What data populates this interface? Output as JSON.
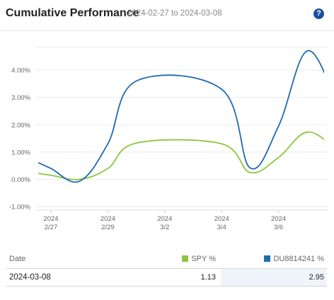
{
  "header": {
    "title": "Cumulative Performance",
    "date_range": "2024-02-27 to 2024-03-08",
    "help_label": "?"
  },
  "chart_data": {
    "type": "line",
    "title": "Cumulative Performance",
    "subtitle": "2024-02-27 to 2024-03-08",
    "ylim": [
      -1.0,
      5.0
    ],
    "y_ticks": [
      -1,
      0,
      1,
      2,
      3,
      4
    ],
    "y_tick_labels": [
      "-1.00%",
      "0.00%",
      "1.00%",
      "2.00%",
      "3.00%",
      "4.00%"
    ],
    "x_tick_labels": [
      {
        "year": "2024",
        "date": "2/27"
      },
      {
        "year": "2024",
        "date": "2/29"
      },
      {
        "year": "2024",
        "date": "3/2"
      },
      {
        "year": "2024",
        "date": "3/4"
      },
      {
        "year": "2024",
        "date": "3/6"
      }
    ],
    "x": [
      "2024-02-27",
      "2024-02-28",
      "2024-02-29",
      "2024-03-01",
      "2024-03-04",
      "2024-03-05",
      "2024-03-06",
      "2024-03-07",
      "2024-03-08"
    ],
    "series": [
      {
        "name": "SPY %",
        "color": "#8dc63f",
        "values": [
          0.15,
          0.0,
          0.4,
          1.33,
          1.3,
          0.25,
          0.8,
          1.73,
          1.13
        ]
      },
      {
        "name": "DU8814241 %",
        "color": "#1f6bb0",
        "values": [
          0.4,
          -0.07,
          1.3,
          3.6,
          3.3,
          0.42,
          1.95,
          4.7,
          2.95
        ]
      }
    ],
    "grid": true,
    "legend": "table-below"
  },
  "table": {
    "columns": {
      "date": "Date",
      "spy": "SPY %",
      "du": "DU8814241 %"
    },
    "swatches": {
      "spy": "#8dc63f",
      "du": "#1f6bb0"
    },
    "rows": [
      {
        "date": "2024-03-08",
        "spy": "1.13",
        "du": "2.95"
      }
    ]
  }
}
